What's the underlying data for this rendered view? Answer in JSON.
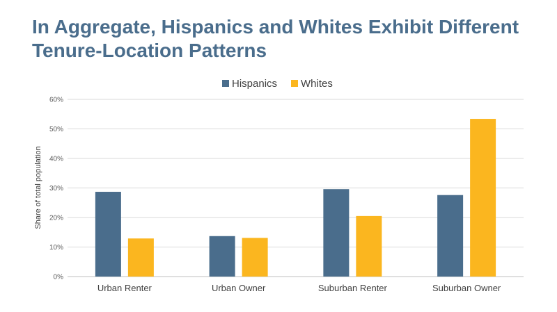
{
  "title": {
    "line1": "In Aggregate, Hispanics and Whites Exhibit Different",
    "line2": "Tenure-Location Patterns"
  },
  "colors": {
    "title": "#4a6d8c",
    "hispanics": "#4a6d8c",
    "whites": "#fbb61f",
    "grid": "#d9d9d9"
  },
  "chart_data": {
    "type": "bar",
    "categories": [
      "Urban Renter",
      "Urban Owner",
      "Suburban Renter",
      "Suburban Owner"
    ],
    "series": [
      {
        "name": "Hispanics",
        "color": "#4a6d8c",
        "values": [
          28.7,
          13.7,
          29.6,
          27.6
        ]
      },
      {
        "name": "Whites",
        "color": "#fbb61f",
        "values": [
          12.9,
          13.1,
          20.5,
          53.4
        ]
      }
    ],
    "ylabel": "Share of total population",
    "xlabel": "",
    "ylim": [
      0,
      60
    ],
    "yticks": [
      "0%",
      "10%",
      "20%",
      "30%",
      "40%",
      "50%",
      "60%"
    ],
    "grid": true,
    "legend_position": "top-center"
  }
}
